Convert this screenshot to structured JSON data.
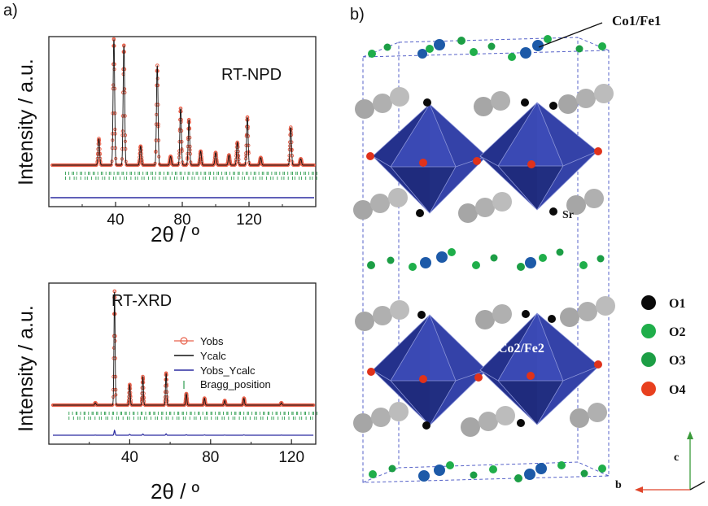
{
  "panels": {
    "a_label": "a)",
    "b_label": "b)"
  },
  "chart_data": [
    {
      "type": "line",
      "annotation": "RT-NPD",
      "ylabel": "Intensity / a.u.",
      "xlabel": "2θ / º",
      "xlim": [
        0,
        160
      ],
      "xticks": [
        40,
        80,
        120
      ],
      "xtick_labels": [
        "40",
        "80",
        "120"
      ],
      "baseline_level": 0.13,
      "peaks": [
        {
          "x": 30,
          "h": 0.21
        },
        {
          "x": 39,
          "h": 1.0
        },
        {
          "x": 45,
          "h": 0.95
        },
        {
          "x": 55,
          "h": 0.15
        },
        {
          "x": 65,
          "h": 0.79
        },
        {
          "x": 73,
          "h": 0.07
        },
        {
          "x": 79,
          "h": 0.45
        },
        {
          "x": 84,
          "h": 0.36
        },
        {
          "x": 91,
          "h": 0.11
        },
        {
          "x": 100,
          "h": 0.1
        },
        {
          "x": 108,
          "h": 0.08
        },
        {
          "x": 113,
          "h": 0.18
        },
        {
          "x": 119,
          "h": 0.38
        },
        {
          "x": 127,
          "h": 0.06
        },
        {
          "x": 145,
          "h": 0.3
        },
        {
          "x": 151,
          "h": 0.05
        }
      ],
      "bragg_rows": 2,
      "bragg_range": [
        10,
        160
      ],
      "series": [
        {
          "name": "Yobs",
          "color": "#e8604a"
        },
        {
          "name": "Ycalc",
          "color": "#111111"
        },
        {
          "name": "Yobs_Ycalc",
          "color": "#2b2ba0"
        },
        {
          "name": "Bragg_position",
          "color": "#2e9d4f"
        }
      ]
    },
    {
      "type": "line",
      "annotation": "RT-XRD",
      "ylabel": "Intensity / a.u.",
      "xlabel": "2θ / º",
      "xlim": [
        0,
        132
      ],
      "xticks": [
        40,
        80,
        120
      ],
      "xtick_labels": [
        "40",
        "80",
        "120"
      ],
      "baseline_level": 0.05,
      "peaks": [
        {
          "x": 23,
          "h": 0.02
        },
        {
          "x": 32.5,
          "h": 1.0
        },
        {
          "x": 40,
          "h": 0.18
        },
        {
          "x": 46.5,
          "h": 0.25
        },
        {
          "x": 58,
          "h": 0.28
        },
        {
          "x": 68,
          "h": 0.1
        },
        {
          "x": 77,
          "h": 0.06
        },
        {
          "x": 87,
          "h": 0.04
        },
        {
          "x": 96.5,
          "h": 0.06
        },
        {
          "x": 115,
          "h": 0.02
        }
      ],
      "bragg_rows": 2,
      "bragg_range": [
        10,
        132
      ],
      "legend": {
        "position": "right",
        "entries": [
          {
            "label": "Yobs",
            "color": "#e8604a",
            "marker": "circle-line"
          },
          {
            "label": "Ycalc",
            "color": "#111111",
            "marker": "line"
          },
          {
            "label": "Yobs_Ycalc",
            "color": "#2b2ba0",
            "marker": "line"
          },
          {
            "label": "Bragg_position",
            "color": "#2e9d4f",
            "marker": "tick"
          }
        ]
      }
    }
  ],
  "structure": {
    "labels": {
      "co1fe1": "Co1/Fe1",
      "sr": "Sr",
      "co2fe2": "Co2/Fe2"
    },
    "legend": [
      {
        "label": "O1",
        "color": "#0a0a0a"
      },
      {
        "label": "O2",
        "color": "#1fae4a"
      },
      {
        "label": "O3",
        "color": "#1c9e45"
      },
      {
        "label": "O4",
        "color": "#e8401e"
      }
    ],
    "axes": {
      "c": "c",
      "b": "b"
    },
    "colors": {
      "octahedron": "#2b3aa0",
      "octahedron_dark": "#1a2270",
      "octahedron_light": "#4a5bc8",
      "sr": "#a6a6a6",
      "cell": "#5561c8",
      "blue_atom": "#1d5aa8",
      "red_atom": "#e0321a"
    }
  }
}
